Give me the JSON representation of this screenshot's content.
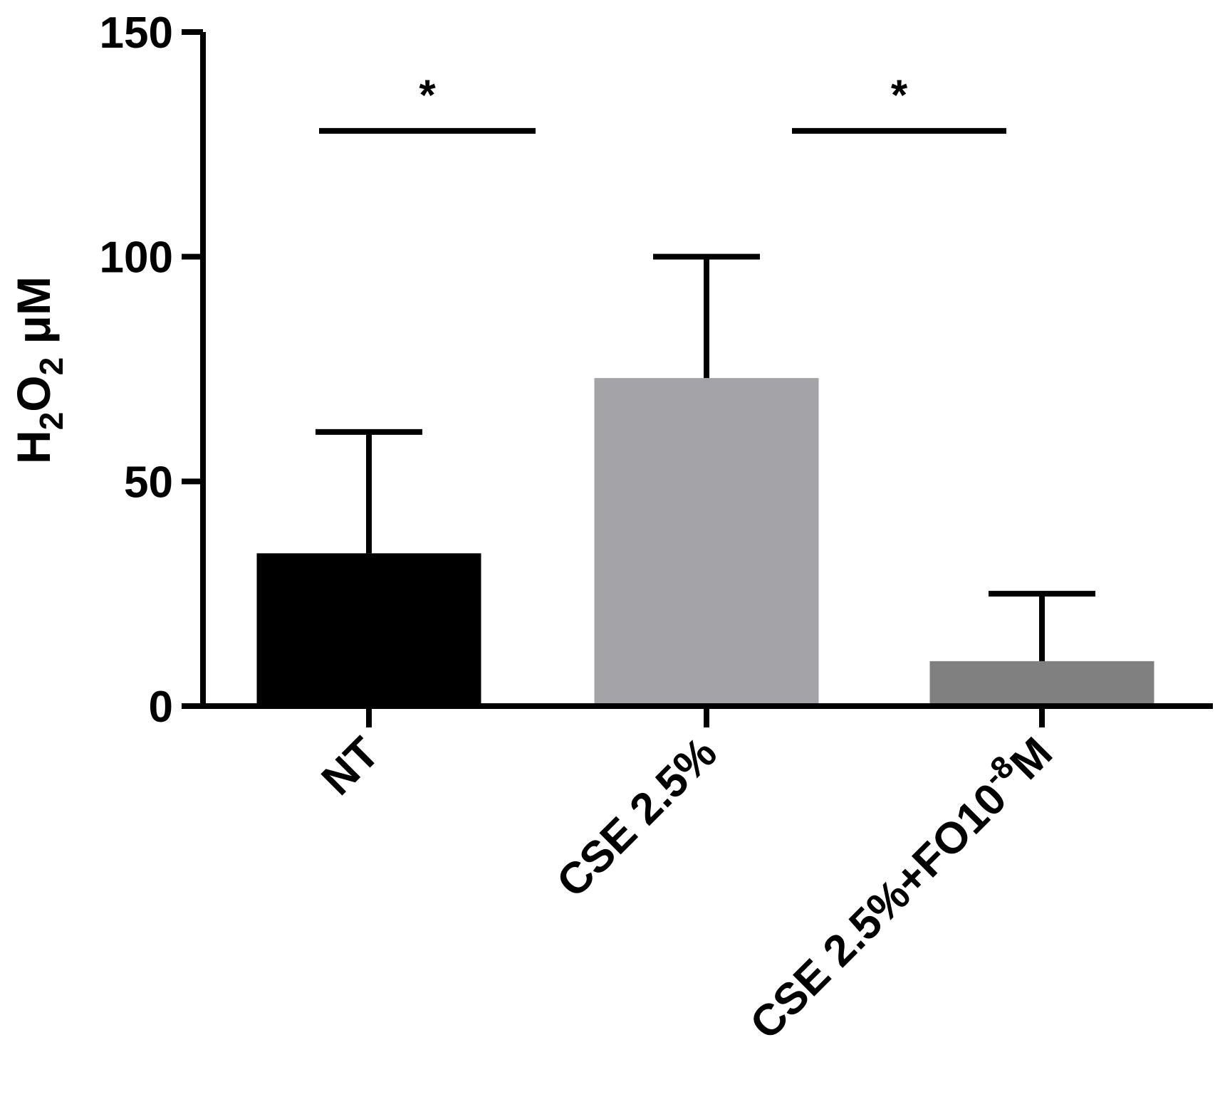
{
  "chart_data": {
    "type": "bar",
    "categories": [
      {
        "main": "NT",
        "sup": "",
        "suffix": ""
      },
      {
        "main": "CSE 2.5%",
        "sup": "",
        "suffix": ""
      },
      {
        "main": "CSE 2.5%+FO10",
        "sup": "-8",
        "suffix": "M"
      }
    ],
    "values": [
      34,
      73,
      10
    ],
    "errors": [
      27,
      27,
      15
    ],
    "colors": [
      "#000000",
      "#a3a3a8",
      "#808080"
    ],
    "ylabel": {
      "prefix": "H",
      "sub1": "2",
      "mid": "O",
      "sub2": "2",
      "suffix": " μM"
    },
    "ylim": [
      0,
      150
    ],
    "yticks": [
      0,
      50,
      100,
      150
    ],
    "significance": [
      {
        "from": 0,
        "to": 1,
        "label": "*",
        "y": 128
      },
      {
        "from": 1,
        "to": 2,
        "label": "*",
        "y": 128
      }
    ],
    "grid": false,
    "legend": "none"
  }
}
